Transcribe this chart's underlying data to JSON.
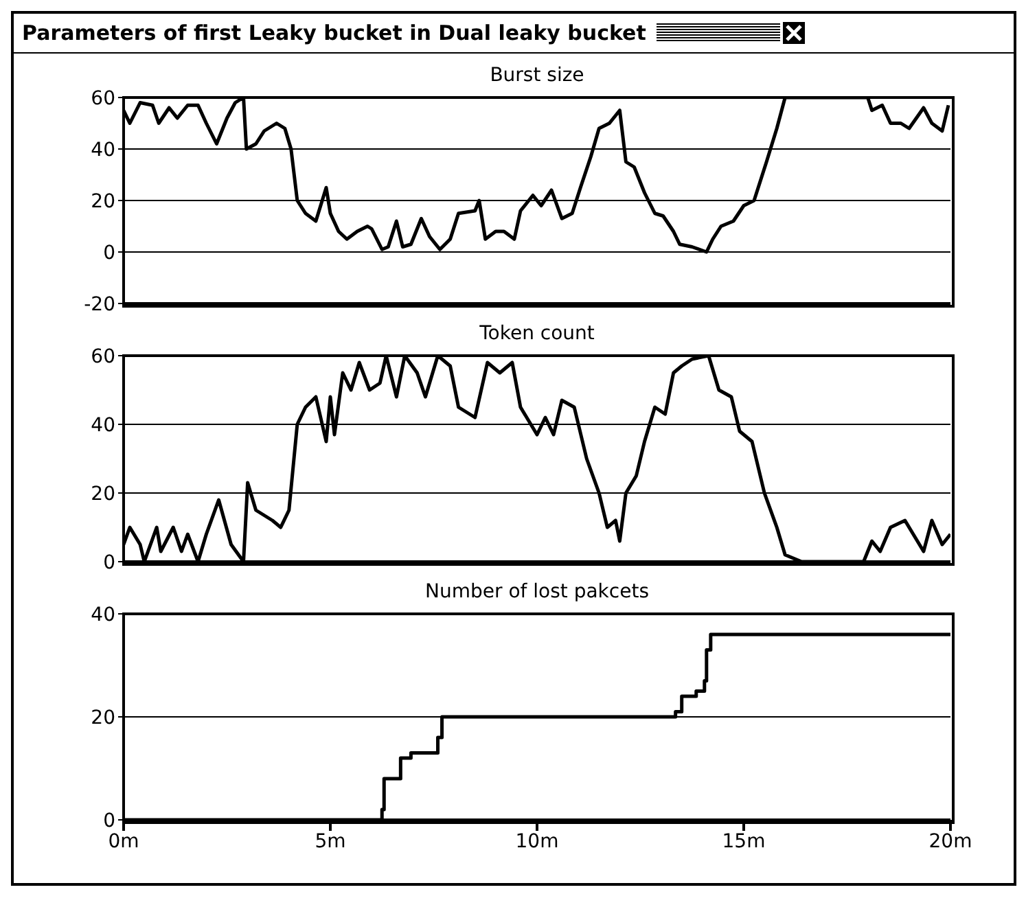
{
  "chart_data": [
    {
      "type": "line",
      "title": "Parameters of first Leaky bucket in Dual leaky bucket",
      "subtitle": "Burst size",
      "color": "#000000",
      "x": [
        0,
        0.15,
        0.4,
        0.7,
        0.85,
        1.1,
        1.3,
        1.55,
        1.8,
        2.0,
        2.25,
        2.5,
        2.7,
        2.9,
        2.97,
        3.2,
        3.4,
        3.7,
        3.9,
        4.05,
        4.2,
        4.4,
        4.65,
        4.9,
        5.0,
        5.2,
        5.4,
        5.65,
        5.9,
        6.0,
        6.25,
        6.4,
        6.6,
        6.75,
        6.95,
        7.2,
        7.4,
        7.65,
        7.9,
        8.1,
        8.5,
        8.6,
        8.75,
        9.0,
        9.2,
        9.45,
        9.6,
        9.9,
        10.1,
        10.35,
        10.6,
        10.85,
        11.05,
        11.3,
        11.5,
        11.75,
        12.0,
        12.15,
        12.35,
        12.6,
        12.85,
        13.05,
        13.3,
        13.45,
        13.75,
        14.1,
        14.25,
        14.45,
        14.75,
        15.0,
        15.25,
        15.55,
        15.8,
        16.0,
        16.55,
        17.15,
        18.0,
        18.1,
        18.35,
        18.55,
        18.8,
        19.0,
        19.35,
        19.55,
        19.8,
        19.95
      ],
      "values": [
        55,
        50,
        58,
        57,
        50,
        56,
        52,
        57,
        57,
        50,
        42,
        52,
        58,
        60,
        40,
        42,
        47,
        50,
        48,
        40,
        20,
        15,
        12,
        25,
        15,
        8,
        5,
        8,
        10,
        9,
        1,
        2,
        12,
        2,
        3,
        13,
        6,
        1,
        5,
        15,
        16,
        20,
        5,
        8,
        8,
        5,
        16,
        22,
        18,
        24,
        13,
        15,
        25,
        37,
        48,
        50,
        55,
        35,
        33,
        23,
        15,
        14,
        8,
        3,
        2,
        0,
        5,
        10,
        12,
        18,
        20,
        35,
        48,
        60,
        60,
        60,
        60,
        55,
        57,
        50,
        50,
        48,
        56,
        50,
        47,
        57
      ],
      "xlim": [
        0,
        20
      ],
      "ylim": [
        -20,
        60
      ],
      "yticks": [
        -20,
        0,
        20,
        40,
        60
      ],
      "grid": "y",
      "tick_labels": "y"
    },
    {
      "type": "line",
      "title": "Token count",
      "color": "#000000",
      "x": [
        0,
        0.15,
        0.4,
        0.5,
        0.8,
        0.9,
        1.2,
        1.4,
        1.55,
        1.8,
        2.0,
        2.3,
        2.6,
        2.9,
        3.0,
        3.2,
        3.6,
        3.8,
        4.0,
        4.2,
        4.4,
        4.65,
        4.9,
        5.0,
        5.1,
        5.3,
        5.5,
        5.7,
        5.95,
        6.2,
        6.35,
        6.6,
        6.8,
        7.1,
        7.3,
        7.6,
        7.9,
        8.1,
        8.5,
        8.8,
        9.1,
        9.4,
        9.6,
        10.0,
        10.2,
        10.4,
        10.6,
        10.9,
        11.2,
        11.5,
        11.7,
        11.9,
        12.0,
        12.15,
        12.4,
        12.6,
        12.85,
        13.1,
        13.3,
        13.5,
        13.75,
        14.15,
        14.4,
        14.7,
        14.9,
        15.2,
        15.5,
        15.8,
        16.0,
        16.4,
        17.2,
        17.9,
        18.1,
        18.3,
        18.55,
        18.9,
        19.1,
        19.35,
        19.55,
        19.8,
        20.0
      ],
      "values": [
        5,
        10,
        5,
        0,
        10,
        3,
        10,
        3,
        8,
        0,
        8,
        18,
        5,
        0,
        23,
        15,
        12,
        10,
        15,
        40,
        45,
        48,
        35,
        48,
        37,
        55,
        50,
        58,
        50,
        52,
        60,
        48,
        60,
        55,
        48,
        60,
        57,
        45,
        42,
        58,
        55,
        58,
        45,
        37,
        42,
        37,
        47,
        45,
        30,
        20,
        10,
        12,
        6,
        20,
        25,
        35,
        45,
        43,
        55,
        57,
        59,
        60,
        50,
        48,
        38,
        35,
        20,
        10,
        2,
        0,
        0,
        0,
        6,
        3,
        10,
        12,
        8,
        3,
        12,
        5,
        8
      ],
      "xlim": [
        0,
        20
      ],
      "ylim": [
        0,
        60
      ],
      "yticks": [
        0,
        20,
        40,
        60
      ],
      "grid": "y",
      "tick_labels": "y"
    },
    {
      "type": "step",
      "title": "Number of lost pakcets",
      "color": "#000000",
      "x": [
        0,
        6.25,
        6.3,
        6.7,
        6.95,
        7.6,
        7.7,
        13.35,
        13.5,
        13.85,
        14.05,
        14.1,
        14.2,
        20.0
      ],
      "values": [
        0,
        2,
        8,
        12,
        13,
        16,
        20,
        21,
        24,
        25,
        27,
        33,
        36,
        36
      ],
      "xlim": [
        0,
        20
      ],
      "xticks": [
        {
          "value": 0,
          "label": "0m"
        },
        {
          "value": 5,
          "label": "5m"
        },
        {
          "value": 10,
          "label": "10m"
        },
        {
          "value": 15,
          "label": "15m"
        },
        {
          "value": 20,
          "label": "20m"
        }
      ],
      "ylim": [
        0,
        40
      ],
      "yticks": [
        0,
        20,
        40
      ],
      "grid": "y"
    }
  ]
}
